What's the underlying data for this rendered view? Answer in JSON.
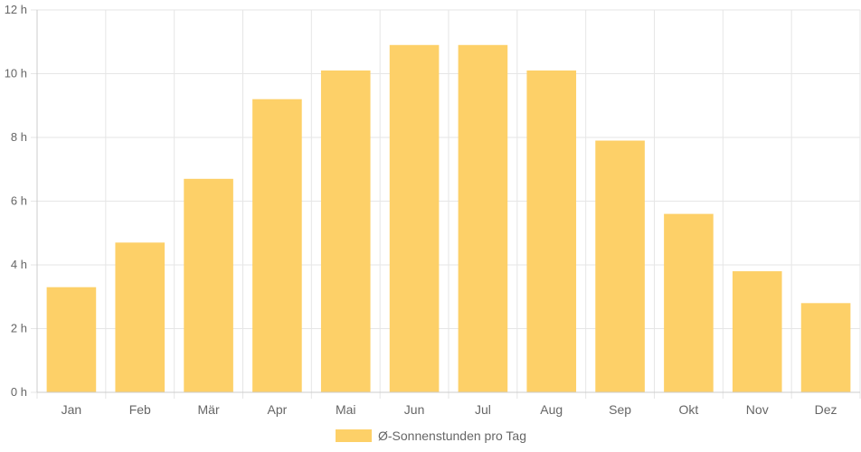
{
  "chart_data": {
    "type": "bar",
    "categories": [
      "Jan",
      "Feb",
      "Mär",
      "Apr",
      "Mai",
      "Jun",
      "Jul",
      "Aug",
      "Sep",
      "Okt",
      "Nov",
      "Dez"
    ],
    "series": [
      {
        "name": "Ø-Sonnenstunden pro Tag",
        "values": [
          3.3,
          4.7,
          6.7,
          9.2,
          10.1,
          10.9,
          10.9,
          10.1,
          7.9,
          5.6,
          3.8,
          2.8
        ],
        "color": "#fdd068"
      }
    ],
    "y_ticks": [
      "0 h",
      "2 h",
      "4 h",
      "6 h",
      "8 h",
      "10 h",
      "12 h"
    ],
    "ylim": [
      0,
      12
    ],
    "y_unit": "h",
    "grid": true,
    "legend_position": "bottom"
  }
}
